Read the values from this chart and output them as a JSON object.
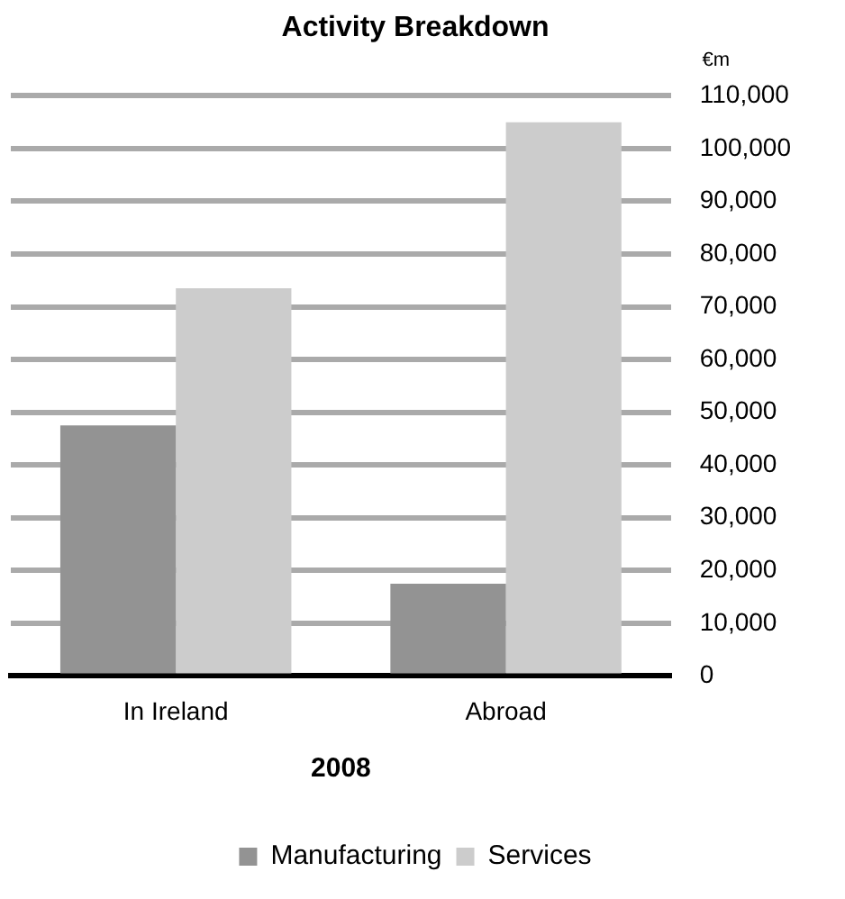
{
  "chart_data": {
    "type": "bar",
    "title": "Activity Breakdown",
    "ylabel": "€m",
    "xlabel": "2008",
    "categories": [
      "In Ireland",
      "Abroad"
    ],
    "series": [
      {
        "name": "Manufacturing",
        "color": "#939393",
        "values": [
          47500,
          17500
        ]
      },
      {
        "name": "Services",
        "color": "#cccccc",
        "values": [
          73500,
          105000
        ]
      }
    ],
    "ylim": [
      0,
      110000
    ],
    "yticks": [
      0,
      {
        "value": 10000,
        "label": "10,000"
      },
      {
        "value": 20000,
        "label": "20,000"
      },
      {
        "value": 30000,
        "label": "30,000"
      },
      {
        "value": 40000,
        "label": "40,000"
      },
      {
        "value": 50000,
        "label": "50,000"
      },
      {
        "value": 60000,
        "label": "60,000"
      },
      {
        "value": 70000,
        "label": "70,000"
      },
      {
        "value": 80000,
        "label": "80,000"
      },
      {
        "value": 90000,
        "label": "90,000"
      },
      {
        "value": 100000,
        "label": "100,000"
      },
      {
        "value": 110000,
        "label": "110,000"
      }
    ],
    "grid": "y",
    "legend": "bottom"
  }
}
